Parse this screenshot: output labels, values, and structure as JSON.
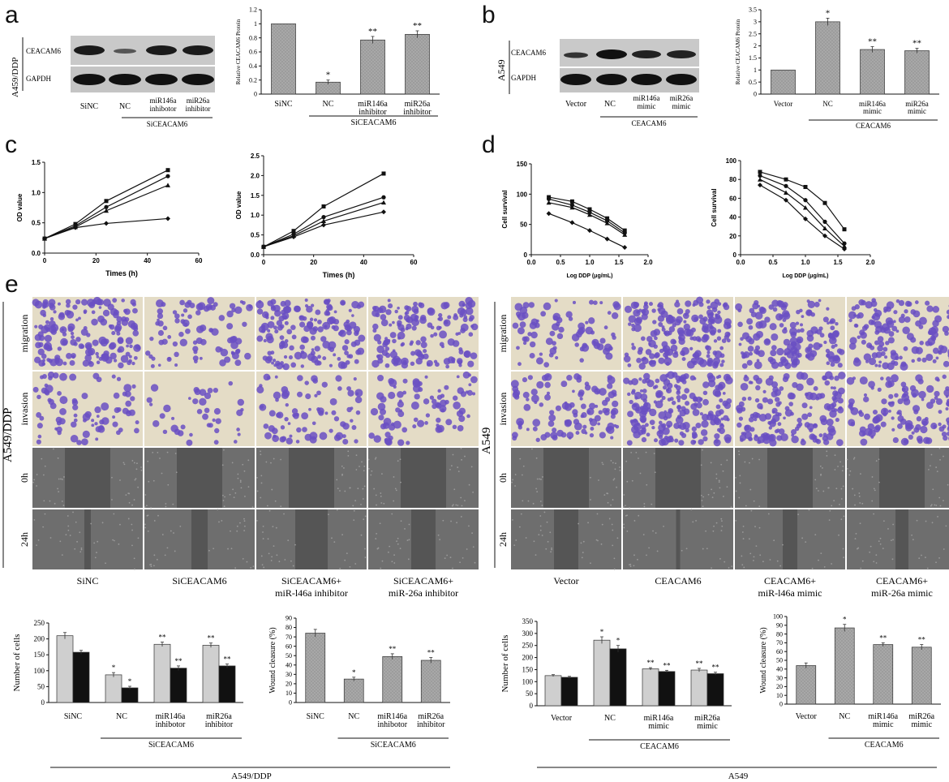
{
  "colors": {
    "gray": "#a8a8a8",
    "light": "#cfcfcf",
    "black": "#111111",
    "stain": "#6a4fc3",
    "bg": "#e4dcc6",
    "scratch": "#555555"
  },
  "panel_labels": [
    "a",
    "b",
    "c",
    "d",
    "e"
  ],
  "panel_a": {
    "row_label": "A459/DDP",
    "blot_labels": [
      "CEACAM6",
      "GAPDH"
    ],
    "lanes": [
      "SiNC",
      "NC",
      "miR146a inhibotor",
      "miR26a inhibitor"
    ],
    "group_label": "SiCEACAM6"
  },
  "panel_b": {
    "row_label": "A549",
    "blot_labels": [
      "CEACAM6",
      "GAPDH"
    ],
    "lanes": [
      "Vector",
      "NC",
      "miR146a mimic",
      "miR26a mimic"
    ],
    "group_label": "CEACAM6"
  },
  "panel_e": {
    "left_cell": "A549/DDP",
    "right_cell": "A549",
    "row_labels": [
      "migration",
      "invasion",
      "0h",
      "24h"
    ],
    "left_cols": [
      "SiNC",
      "SiCEACAM6",
      "SiCEACAM6+|miR-l46a inhibitor",
      "SiCEACAM6+|miR-26a inhibitor"
    ],
    "right_cols": [
      "Vector",
      "CEACAM6",
      "CEACAM6+|miR-l46a  mimic",
      "CEACAM6+|miR-26a mimic"
    ],
    "bottom_left": "A549/DDP",
    "bottom_right": "A549"
  },
  "chart_data": [
    {
      "id": "a_bar",
      "type": "bar",
      "ylabel": "Relative CEACAM6 Protein",
      "categories": [
        "SiNC",
        "NC",
        "miR146a|inhibitor",
        "miR26a|inhibitor"
      ],
      "values": [
        1.0,
        0.17,
        0.77,
        0.85
      ],
      "errors": [
        0,
        0.03,
        0.05,
        0.05
      ],
      "sig": [
        "",
        "*",
        "**",
        "**"
      ],
      "group_label": "SiCEACAM6",
      "ylim": [
        0,
        1.2
      ],
      "yticks": [
        0,
        0.2,
        0.4,
        0.6,
        0.8,
        1,
        1.2
      ]
    },
    {
      "id": "b_bar",
      "type": "bar",
      "ylabel": "Relative CEACAM6 Protein",
      "categories": [
        "Vector",
        "NC",
        "miR146a|mimic",
        "miR26a|mimic"
      ],
      "values": [
        1.0,
        3.0,
        1.85,
        1.8
      ],
      "errors": [
        0,
        0.15,
        0.12,
        0.1
      ],
      "sig": [
        "",
        "*",
        "**",
        "**"
      ],
      "group_label": "CEACAM6",
      "ylim": [
        0,
        3.5
      ],
      "yticks": [
        0,
        0.5,
        1,
        1.5,
        2,
        2.5,
        3,
        3.5
      ]
    },
    {
      "id": "c_left",
      "type": "line",
      "xlabel": "Times  (h)",
      "ylabel": "OD value",
      "xlim": [
        0,
        60
      ],
      "ylim": [
        0,
        1.5
      ],
      "xticks": [
        0,
        20,
        40,
        60
      ],
      "yticks": [
        0.0,
        0.5,
        1.0,
        1.5
      ],
      "x": [
        0,
        12,
        24,
        48
      ],
      "series": [
        {
          "values": [
            0.24,
            0.48,
            0.86,
            1.37
          ]
        },
        {
          "values": [
            0.24,
            0.45,
            0.76,
            1.27
          ]
        },
        {
          "values": [
            0.24,
            0.43,
            0.7,
            1.12
          ]
        },
        {
          "values": [
            0.24,
            0.42,
            0.49,
            0.57
          ]
        }
      ]
    },
    {
      "id": "c_right",
      "type": "line",
      "xlabel": "Times  (h)",
      "ylabel": "OD value",
      "xlim": [
        0,
        60
      ],
      "ylim": [
        0,
        2.5
      ],
      "xticks": [
        0,
        20,
        40,
        60
      ],
      "yticks": [
        0.0,
        0.5,
        1.0,
        1.5,
        2.0,
        2.5
      ],
      "x": [
        0,
        12,
        24,
        48
      ],
      "series": [
        {
          "values": [
            0.2,
            0.6,
            1.22,
            2.05
          ]
        },
        {
          "values": [
            0.2,
            0.52,
            0.95,
            1.45
          ]
        },
        {
          "values": [
            0.2,
            0.48,
            0.85,
            1.32
          ]
        },
        {
          "values": [
            0.2,
            0.45,
            0.75,
            1.08
          ]
        }
      ]
    },
    {
      "id": "d_left",
      "type": "line",
      "xlabel": "Log DDP (μg/mL)",
      "ylabel": "Cell survival",
      "xlim": [
        0.0,
        2.0
      ],
      "ylim": [
        0,
        150
      ],
      "xticks": [
        0.0,
        0.5,
        1.0,
        1.5,
        2.0
      ],
      "yticks": [
        0,
        50,
        100,
        150
      ],
      "x": [
        0.3,
        0.7,
        1.0,
        1.3,
        1.6
      ],
      "series": [
        {
          "values": [
            95,
            88,
            75,
            60,
            40
          ]
        },
        {
          "values": [
            92,
            82,
            70,
            56,
            36
          ]
        },
        {
          "values": [
            86,
            78,
            66,
            52,
            33
          ]
        },
        {
          "values": [
            68,
            53,
            40,
            26,
            12
          ]
        }
      ]
    },
    {
      "id": "d_right",
      "type": "line",
      "xlabel": "Log DDP (μg/mL)",
      "ylabel": "Cell survival",
      "xlim": [
        0.0,
        2.0
      ],
      "ylim": [
        0,
        100
      ],
      "xticks": [
        0.0,
        0.5,
        1.0,
        1.5,
        2.0
      ],
      "yticks": [
        0,
        20,
        40,
        60,
        80,
        100
      ],
      "x": [
        0.3,
        0.7,
        1.0,
        1.3,
        1.6
      ],
      "series": [
        {
          "values": [
            88,
            80,
            72,
            55,
            27
          ]
        },
        {
          "values": [
            84,
            73,
            58,
            35,
            12
          ]
        },
        {
          "values": [
            80,
            66,
            50,
            28,
            9
          ]
        },
        {
          "values": [
            74,
            58,
            38,
            20,
            6
          ]
        }
      ]
    },
    {
      "id": "e_cells_left",
      "type": "bar",
      "ylabel": "Number of cells",
      "categories": [
        "SiNC",
        "NC",
        "miR146a|inhibotor",
        "miR26a|inhibitor"
      ],
      "series": [
        {
          "values": [
            210,
            87,
            183,
            180
          ],
          "errors": [
            10,
            7,
            7,
            7
          ],
          "sig": [
            "",
            "*",
            "**",
            "**"
          ]
        },
        {
          "values": [
            158,
            46,
            108,
            115
          ],
          "errors": [
            6,
            5,
            7,
            6
          ],
          "sig": [
            "",
            "*",
            "**",
            "**"
          ]
        }
      ],
      "group_label": "SiCEACAM6",
      "ylim": [
        0,
        250
      ],
      "yticks": [
        0,
        50,
        100,
        150,
        200,
        250
      ]
    },
    {
      "id": "e_wound_left",
      "type": "bar",
      "ylabel": "Wound cleasure (%)",
      "categories": [
        "SiNC",
        "NC",
        "miR146a|inhibotor",
        "miR26a|inhibitor"
      ],
      "values": [
        74,
        25,
        49,
        45
      ],
      "errors": [
        4,
        2,
        3,
        3
      ],
      "sig": [
        "",
        "*",
        "**",
        "**"
      ],
      "group_label": "SiCEACAM6",
      "ylim": [
        0,
        90
      ],
      "yticks": [
        0,
        10,
        20,
        30,
        40,
        50,
        60,
        70,
        80,
        90
      ]
    },
    {
      "id": "e_cells_right",
      "type": "bar",
      "ylabel": "Number of cells",
      "categories": [
        "Vector",
        "NC",
        "miR146a|mimic",
        "miR26a|mimic"
      ],
      "series": [
        {
          "values": [
            125,
            272,
            153,
            148
          ],
          "errors": [
            4,
            14,
            5,
            7
          ],
          "sig": [
            "",
            "*",
            "**",
            "**"
          ]
        },
        {
          "values": [
            118,
            236,
            142,
            133
          ],
          "errors": [
            4,
            14,
            5,
            6
          ],
          "sig": [
            "",
            "*",
            "**",
            "**"
          ]
        }
      ],
      "group_label": "CEACAM6",
      "ylim": [
        0,
        350
      ],
      "yticks": [
        0,
        50,
        100,
        150,
        200,
        250,
        300,
        350
      ]
    },
    {
      "id": "e_wound_right",
      "type": "bar",
      "ylabel": "Wound cleasure (%)",
      "categories": [
        "Vector",
        "NC",
        "miR146a|mimic",
        "miR26a|mimic"
      ],
      "values": [
        44,
        87,
        68,
        65
      ],
      "errors": [
        3,
        4,
        2,
        3
      ],
      "sig": [
        "",
        "*",
        "**",
        "**"
      ],
      "group_label": "CEACAM6",
      "ylim": [
        0,
        100
      ],
      "yticks": [
        0,
        10,
        20,
        30,
        40,
        50,
        60,
        70,
        80,
        90,
        100
      ]
    }
  ]
}
